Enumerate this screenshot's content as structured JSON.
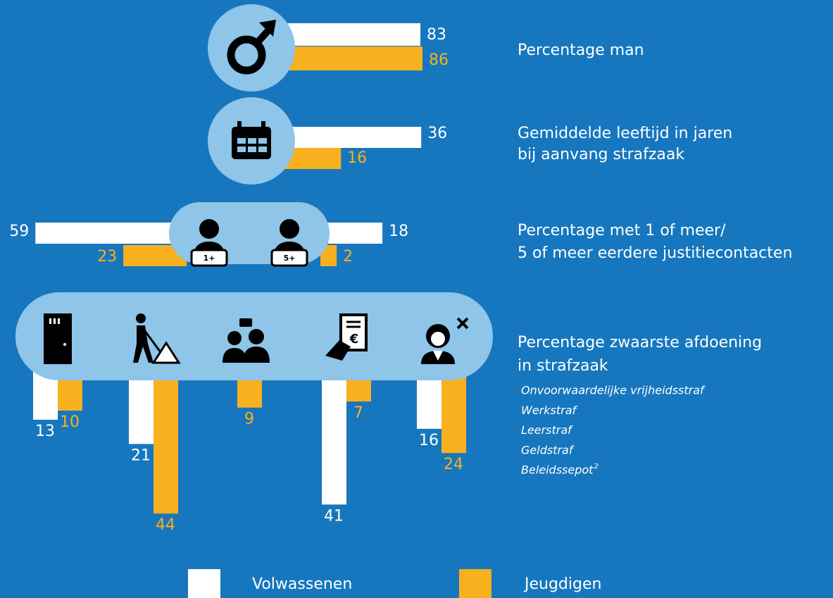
{
  "chart_data": [
    {
      "type": "bar",
      "title": [
        "Percentage man"
      ],
      "series": [
        {
          "name": "Volwassenen",
          "color": "#ffffff",
          "values": [
            83
          ]
        },
        {
          "name": "Jeugdigen",
          "color": "#f8b01f",
          "values": [
            86
          ]
        }
      ]
    },
    {
      "type": "bar",
      "title": [
        "Gemiddelde leeftijd in jaren",
        "bij aanvang strafzaak"
      ],
      "series": [
        {
          "name": "Volwassenen",
          "color": "#ffffff",
          "values": [
            36
          ]
        },
        {
          "name": "Jeugdigen",
          "color": "#f8b01f",
          "values": [
            16
          ]
        }
      ]
    },
    {
      "type": "bar",
      "title": [
        "Percentage met 1 of meer/",
        "5 of meer eerdere justitiecontacten"
      ],
      "categories": [
        "1+",
        "5+"
      ],
      "series": [
        {
          "name": "Volwassenen",
          "color": "#ffffff",
          "values": [
            59,
            18
          ]
        },
        {
          "name": "Jeugdigen",
          "color": "#f8b01f",
          "values": [
            23,
            2
          ]
        }
      ]
    },
    {
      "type": "bar",
      "title": [
        "Percentage zwaarste afdoening",
        "in strafzaak"
      ],
      "categories": [
        "Onvoorwaardelijke vrijheidsstraf",
        "Werkstraf",
        "Leerstraf",
        "Geldstraf",
        "Beleidssepot"
      ],
      "footnote": "2",
      "series": [
        {
          "name": "Volwassenen",
          "color": "#ffffff",
          "values": [
            13,
            21,
            null,
            41,
            16
          ]
        },
        {
          "name": "Jeugdigen",
          "color": "#f8b01f",
          "values": [
            10,
            44,
            9,
            7,
            24
          ]
        }
      ]
    }
  ]
}
